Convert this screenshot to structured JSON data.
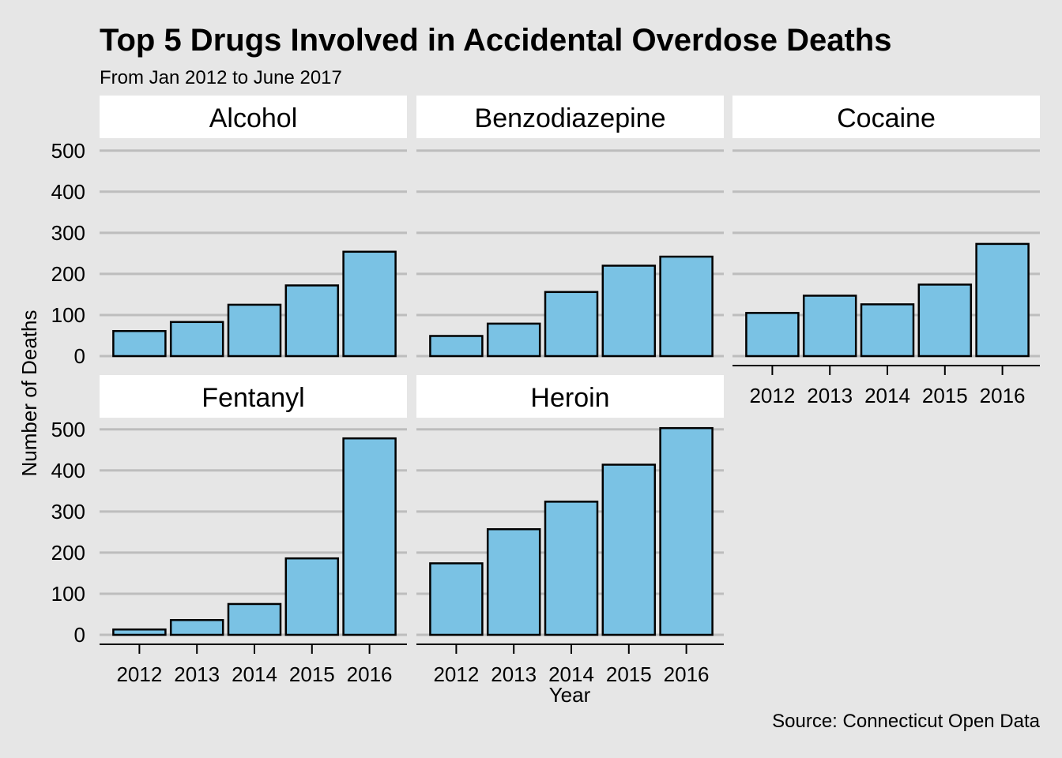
{
  "chart_data": {
    "type": "bar",
    "title": "Top 5 Drugs Involved in Accidental Overdose Deaths",
    "subtitle": "From Jan 2012 to June 2017",
    "xlabel": "Year",
    "ylabel": "Number of Deaths",
    "caption": "Source: Connecticut Open Data",
    "categories": [
      "2012",
      "2013",
      "2014",
      "2015",
      "2016"
    ],
    "y_ticks": [
      0,
      100,
      200,
      300,
      400,
      500
    ],
    "ylim": [
      0,
      520
    ],
    "grid": "horizontal",
    "bar_color": "#7ac2e4",
    "bar_outline": "#000000",
    "panel_background": "#e6e6e6",
    "strip_background": "#ffffff",
    "gridline_color": "#bdbdbd",
    "panels": [
      {
        "name": "Alcohol",
        "values": [
          61,
          83,
          125,
          172,
          254
        ]
      },
      {
        "name": "Benzodiazepine",
        "values": [
          49,
          79,
          156,
          220,
          242
        ]
      },
      {
        "name": "Cocaine",
        "values": [
          105,
          147,
          126,
          174,
          273
        ]
      },
      {
        "name": "Fentanyl",
        "values": [
          13,
          36,
          75,
          186,
          478
        ]
      },
      {
        "name": "Heroin",
        "values": [
          174,
          257,
          324,
          414,
          503
        ]
      }
    ]
  }
}
